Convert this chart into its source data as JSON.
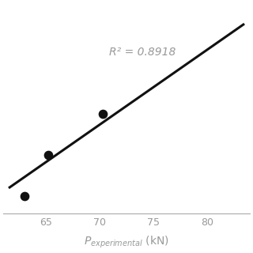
{
  "scatter_x": [
    63.0,
    65.2,
    70.3
  ],
  "scatter_y": [
    57.5,
    65.5,
    73.5
  ],
  "line_x": [
    61.5,
    83.5
  ],
  "line_y": [
    59.0,
    91.0
  ],
  "r_squared": "R² = 0.8918",
  "r2_x": 74.0,
  "r2_y": 85.5,
  "xlim": [
    61.0,
    84.0
  ],
  "ylim": [
    54.0,
    95.0
  ],
  "xticks": [
    65,
    70,
    75,
    80
  ],
  "marker_color": "#111111",
  "marker_size": 55,
  "line_color": "#111111",
  "line_width": 2.2,
  "bg_color": "#ffffff",
  "axis_color": "#aaaaaa",
  "text_color": "#999999",
  "annotation_fontsize": 10,
  "tick_fontsize": 9
}
